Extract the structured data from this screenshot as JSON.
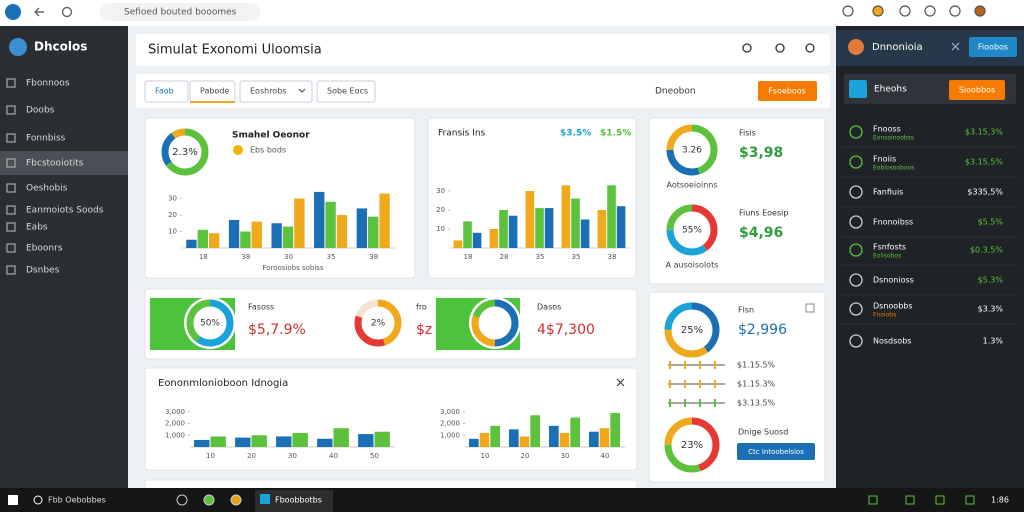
{
  "browser": {
    "url": "Sefioed bouted booomes"
  },
  "sidebar": {
    "logo": "Dhcolos",
    "items": [
      "Fbonnoos",
      "Doobs",
      "Fonnbiss",
      "Fbcstooiotits",
      "Oeshobis",
      "Eanmoiots Soods",
      "Eabs",
      "Eboonrs",
      "Dsnbes"
    ],
    "active": 3
  },
  "header": {
    "title": "Simulat Exonomi Uloomsia"
  },
  "toolbar": {
    "tabs": [
      "Faob",
      "Pabode",
      "Eoshrobs",
      "Sobe Eocs"
    ],
    "label": "Dneobon",
    "button": "Fsoeboos"
  },
  "card_a": {
    "title": "Smahel Oeonor",
    "subtitle": "Ebs bods",
    "donut": {
      "label": "2.3%",
      "segments": [
        {
          "value": 65,
          "color": "#5cc23d"
        },
        {
          "value": 25,
          "color": "#1a6fb5"
        },
        {
          "value": 10,
          "color": "#f0a81c"
        }
      ]
    },
    "chart": {
      "type": "bar",
      "categories": [
        "18",
        "38",
        "30",
        "35",
        "38"
      ],
      "ylim": [
        0,
        40
      ],
      "yticks": [
        10,
        20,
        30
      ],
      "series": [
        {
          "color": "#1a6fb5",
          "values": [
            5,
            17,
            15,
            34,
            24
          ]
        },
        {
          "color": "#5cc23d",
          "values": [
            11,
            10,
            13,
            28,
            19
          ]
        },
        {
          "color": "#f0a81c",
          "values": [
            9,
            16,
            30,
            20,
            33
          ]
        }
      ]
    },
    "caption": "Foroosiobs sobiss"
  },
  "card_b": {
    "title": "Fransis Ins",
    "stats": [
      {
        "text": "$3.5%",
        "color": "#1aa3d9"
      },
      {
        "text": "$1.5%",
        "color": "#5cc23d"
      }
    ],
    "chart": {
      "type": "bar",
      "categories": [
        "18",
        "28",
        "35",
        "35",
        "38"
      ],
      "ylim": [
        0,
        40
      ],
      "yticks": [
        10,
        20,
        30
      ],
      "series": [
        {
          "color": "#f0a81c",
          "values": [
            4,
            10,
            30,
            33,
            20
          ]
        },
        {
          "color": "#5cc23d",
          "values": [
            14,
            20,
            21,
            26,
            33
          ]
        },
        {
          "color": "#1a6fb5",
          "values": [
            8,
            17,
            21,
            15,
            22
          ]
        }
      ]
    }
  },
  "card_c": {
    "metrics": [
      {
        "title": "Fisis",
        "value": "$3,98",
        "value_color": "#2e9e3a",
        "caption": "Aotsoeioinns",
        "donut": {
          "label": "3.26",
          "segments": [
            {
              "value": 45,
              "color": "#5cc23d"
            },
            {
              "value": 30,
              "color": "#1a6fb5"
            },
            {
              "value": 25,
              "color": "#f0a81c"
            }
          ]
        }
      },
      {
        "title": "Fiuns Eoesip",
        "value": "$4,96",
        "value_color": "#2e9e3a",
        "caption": "A ausoisolots",
        "donut": {
          "label": "55%",
          "segments": [
            {
              "value": 40,
              "color": "#e53935"
            },
            {
              "value": 35,
              "color": "#1aa3d9"
            },
            {
              "value": 25,
              "color": "#5cc23d"
            }
          ]
        }
      }
    ]
  },
  "card_d": {
    "items": [
      {
        "title": "Fasoss",
        "value": "$5,7.9%",
        "donut": {
          "label": "50%",
          "segments": [
            {
              "value": 60,
              "color": "#1aa3d9"
            },
            {
              "value": 40,
              "color": "#5cc23d"
            }
          ]
        }
      },
      {
        "title": "fro",
        "value": "$z",
        "donut": {
          "label": "2%",
          "segments": [
            {
              "value": 45,
              "color": "#f0a81c"
            },
            {
              "value": 35,
              "color": "#e53935"
            },
            {
              "value": 20,
              "color": "#f4e2d0"
            }
          ]
        }
      },
      {
        "title": "Dasos",
        "value": "4$7,300",
        "donut": {
          "label": "",
          "segments": [
            {
              "value": 50,
              "color": "#1a6fb5"
            },
            {
              "value": 30,
              "color": "#f0a81c"
            },
            {
              "value": 20,
              "color": "#5cc23d"
            }
          ]
        }
      }
    ],
    "value_color": "#d32f2f"
  },
  "card_e": {
    "title": "Eononmlonioboon Idnogia",
    "charts": [
      {
        "type": "bar",
        "categories": [
          "10",
          "20",
          "30",
          "40",
          "50"
        ],
        "ylim": [
          0,
          4000
        ],
        "yticks": [
          {
            "value": 1000,
            "label": "1,000"
          },
          {
            "value": 2000,
            "label": "2,000"
          },
          {
            "value": 3000,
            "label": "3,000"
          }
        ],
        "series": [
          {
            "color": "#1a6fb5",
            "values": [
              600,
              800,
              900,
              700,
              1100
            ]
          },
          {
            "color": "#5cc23d",
            "values": [
              900,
              1000,
              1200,
              1600,
              1300
            ]
          }
        ]
      },
      {
        "type": "bar",
        "categories": [
          "10",
          "20",
          "30",
          "40"
        ],
        "ylim": [
          0,
          4000
        ],
        "yticks": [
          {
            "value": 1000,
            "label": "1,000"
          },
          {
            "value": 2000,
            "label": "2,000"
          },
          {
            "value": 3000,
            "label": "3,000"
          }
        ],
        "series": [
          {
            "color": "#1a6fb5",
            "values": [
              700,
              1500,
              1800,
              1300
            ]
          },
          {
            "color": "#f0a81c",
            "values": [
              1200,
              900,
              1200,
              1600
            ]
          },
          {
            "color": "#5cc23d",
            "values": [
              1800,
              2700,
              2500,
              2900
            ]
          }
        ]
      }
    ]
  },
  "card_f": {
    "title": "Flsn",
    "value": "$2,996",
    "value_color": "#1a6fb5",
    "donut": {
      "label": "25%",
      "segments": [
        {
          "value": 40,
          "color": "#1a6fb5"
        },
        {
          "value": 35,
          "color": "#f0a81c"
        },
        {
          "value": 25,
          "color": "#1aa3d9"
        }
      ]
    },
    "sliders": [
      "$1.15.5%",
      "$1.15.3%",
      "$3.13.5%"
    ],
    "donut2": {
      "label": "23%",
      "segments": [
        {
          "value": 45,
          "color": "#e53935"
        },
        {
          "value": 30,
          "color": "#5cc23d"
        },
        {
          "value": 25,
          "color": "#f0a81c"
        }
      ]
    },
    "title2": "Dnige Suosd",
    "button": "Ctc Intoobelsios"
  },
  "right_panel": {
    "title": "Dnnonioia",
    "button": "Fioobos",
    "banner": "Eheohs",
    "banner_button": "Sioobbos",
    "items": [
      {
        "name": "Fnooss",
        "sub": "Eonsoinoobss",
        "value": "$3.15,3%",
        "value_color": "#5cc23d"
      },
      {
        "name": "Fnoiis",
        "sub": "Eoblosooboos",
        "value": "$3.15,5%",
        "value_color": "#5cc23d"
      },
      {
        "name": "Fanfiuis",
        "value": "$335,5%",
        "value_color": "#ffffff"
      },
      {
        "name": "Fnonoibss",
        "value": "$5.5%",
        "value_color": "#5cc23d"
      },
      {
        "name": "Fsnfosts",
        "sub": "Eolisobos",
        "value": "$0.3,5%",
        "value_color": "#5cc23d"
      },
      {
        "name": "Dsnonioss",
        "value": "$5.3%",
        "value_color": "#5cc23d"
      },
      {
        "name": "Dsnoobbs",
        "sub": "Fnoiobs",
        "value": "$3.3%",
        "value_color": "#ffffff"
      },
      {
        "name": "Nosdsobs",
        "value": "1.3%",
        "value_color": "#ffffff"
      }
    ]
  },
  "taskbar": {
    "search": "Fbb Oebobbes",
    "app": "Fboobbotbs",
    "time": "1:86"
  }
}
